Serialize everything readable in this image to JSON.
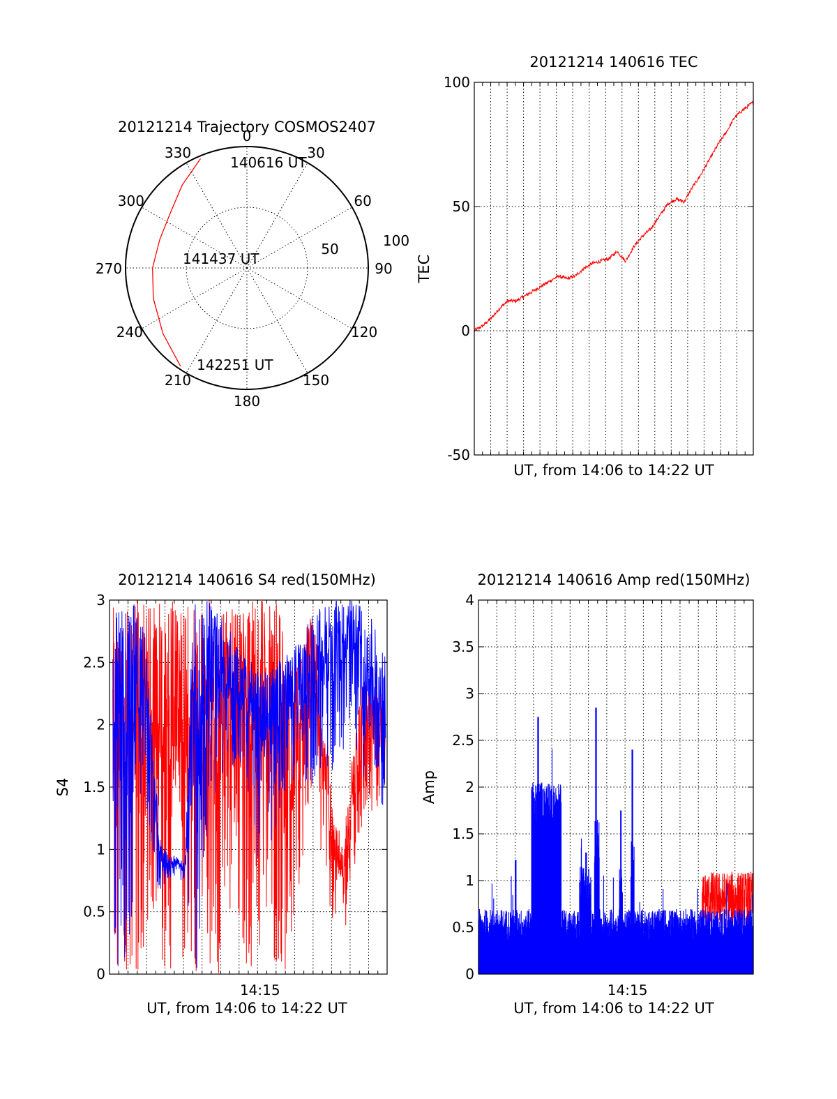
{
  "colors": {
    "red": "#ff0000",
    "blue": "#0000ff",
    "axis": "#000000"
  },
  "chart_data": [
    {
      "id": "polar",
      "type": "scatter",
      "projection": "polar",
      "title": "20121214 Trajectory COSMOS2407",
      "azimuth_labels": [
        "0",
        "30",
        "60",
        "90",
        "120",
        "150",
        "180",
        "210",
        "240",
        "270",
        "300",
        "330"
      ],
      "radius_labels": [
        "50",
        "100"
      ],
      "grid": true,
      "series": [
        {
          "color": "red",
          "points": [
            {
              "az": 337,
              "zen": 88
            },
            {
              "az": 322,
              "zen": 78
            },
            {
              "az": 306,
              "zen": 70
            },
            {
              "az": 288,
              "zen": 68
            },
            {
              "az": 270,
              "zen": 70
            },
            {
              "az": 252,
              "zen": 73
            },
            {
              "az": 232,
              "zen": 79
            },
            {
              "az": 214,
              "zen": 88
            }
          ]
        }
      ],
      "annotations": [
        {
          "text": "140616 UT",
          "az": 337,
          "zen": 88
        },
        {
          "text": "141437 UT",
          "az": 270,
          "zen": 5
        },
        {
          "text": "142251 UT",
          "az": 214,
          "zen": 88
        }
      ]
    },
    {
      "id": "tec",
      "type": "line",
      "title": "20121214 140616 TEC",
      "xlabel": "UT, from 14:06 to 14:22 UT",
      "ylabel": "TEC",
      "xlim": [
        0,
        16.6
      ],
      "ylim": [
        -50,
        100
      ],
      "yticks": [
        "-50",
        "0",
        "50",
        "100"
      ],
      "xtick_labels": [],
      "grid": true,
      "series": [
        {
          "color": "red",
          "x": [
            0,
            0.5,
            1,
            1.5,
            2,
            2.5,
            3,
            3.5,
            4,
            4.5,
            5,
            5.5,
            6,
            6.5,
            7,
            7.5,
            8,
            8.5,
            9,
            9.5,
            10,
            10.5,
            11,
            11.5,
            12,
            12.5,
            13,
            13.5,
            14,
            14.5,
            15,
            15.5,
            16,
            16.6
          ],
          "y": [
            0,
            2,
            5,
            9,
            12,
            12,
            14,
            16,
            18,
            20,
            22,
            21,
            22,
            25,
            27,
            28,
            29,
            32,
            28,
            34,
            38,
            41,
            46,
            51,
            53,
            52,
            58,
            63,
            69,
            75,
            80,
            86,
            89,
            92
          ]
        }
      ]
    },
    {
      "id": "s4",
      "type": "line",
      "title": "20121214 140616 S4 red(150MHz)",
      "xlabel": "UT, from 14:06 to 14:22 UT",
      "ylabel": "S4",
      "xlim": [
        0,
        16.6
      ],
      "ylim": [
        0,
        3
      ],
      "yticks": [
        "0",
        "0.5",
        "1",
        "1.5",
        "2",
        "2.5",
        "3"
      ],
      "xtick_labels": [
        {
          "x": 9.0,
          "label": "14:15"
        }
      ],
      "grid": true,
      "series": [
        {
          "color": "red",
          "envelope_x": [
            0.2,
            1,
            2,
            3,
            4,
            5,
            6,
            7,
            8,
            9,
            10,
            11,
            12,
            12.5,
            13,
            13.5,
            14,
            14.5,
            15,
            15.5,
            16,
            16.5
          ],
          "envelope_low": [
            0,
            0,
            0,
            0,
            0,
            0,
            0,
            0,
            0,
            0,
            0,
            0,
            1.4,
            0.9,
            0.5,
            0.4,
            0.35,
            0.5,
            1.0,
            1.3,
            1.2,
            1.4
          ],
          "envelope_high": [
            3,
            3,
            3,
            3,
            3,
            3,
            3,
            3,
            3,
            3,
            3,
            2.4,
            2.9,
            2.6,
            1.9,
            1.2,
            1.1,
            1.7,
            2.3,
            2.4,
            2.3,
            2.2
          ]
        },
        {
          "color": "blue",
          "envelope_x": [
            0.2,
            1,
            2,
            3,
            3.5,
            4,
            4.5,
            5,
            5.5,
            6,
            7,
            8,
            9,
            10,
            11,
            12,
            13,
            14,
            15,
            16,
            16.5
          ],
          "envelope_low": [
            0,
            0,
            1.5,
            0.6,
            0.7,
            0.8,
            0.7,
            0,
            0,
            1.2,
            1.5,
            1.7,
            0.8,
            1.2,
            1.5,
            1.5,
            1.6,
            1.7,
            1.6,
            1.5,
            1.1
          ],
          "envelope_high": [
            3,
            3,
            3,
            1.1,
            0.95,
            0.95,
            0.9,
            3,
            3,
            3,
            2.8,
            2.6,
            2.4,
            2.5,
            2.6,
            2.9,
            3,
            3,
            3,
            2.8,
            2.6
          ]
        }
      ]
    },
    {
      "id": "amp",
      "type": "bar",
      "title": "20121214 140616 Amp red(150MHz)",
      "xlabel": "UT, from 14:06 to 14:22 UT",
      "ylabel": "Amp",
      "xlim": [
        0,
        16.6
      ],
      "ylim": [
        0,
        4
      ],
      "yticks": [
        "0",
        "0.5",
        "1",
        "1.5",
        "2",
        "2.5",
        "3",
        "3.5",
        "4"
      ],
      "xtick_labels": [
        {
          "x": 9.0,
          "label": "14:15"
        }
      ],
      "grid": true,
      "series": [
        {
          "color": "blue",
          "baseline": 0.45,
          "bursts": [
            {
              "x0": 3.2,
              "x1": 5.0,
              "level": 1.8,
              "peak": 2.75,
              "peak_x": 3.6
            },
            {
              "x0": 6.1,
              "x1": 6.8,
              "level": 0.9,
              "peak": 1.3,
              "peak_x": 6.5
            },
            {
              "x0": 7.0,
              "x1": 7.3,
              "level": 1.4,
              "peak": 2.85,
              "peak_x": 7.1
            },
            {
              "x0": 8.5,
              "x1": 8.7,
              "level": 0.9,
              "peak": 1.75,
              "peak_x": 8.6
            },
            {
              "x0": 9.2,
              "x1": 9.4,
              "level": 1.2,
              "peak": 2.4,
              "peak_x": 9.3
            },
            {
              "x0": 2.2,
              "x1": 2.3,
              "level": 0.6,
              "peak": 1.22,
              "peak_x": 2.25
            }
          ]
        },
        {
          "color": "red",
          "x_range": [
            13.5,
            16.6
          ],
          "low": 0.5,
          "high": 1.1
        }
      ]
    }
  ]
}
